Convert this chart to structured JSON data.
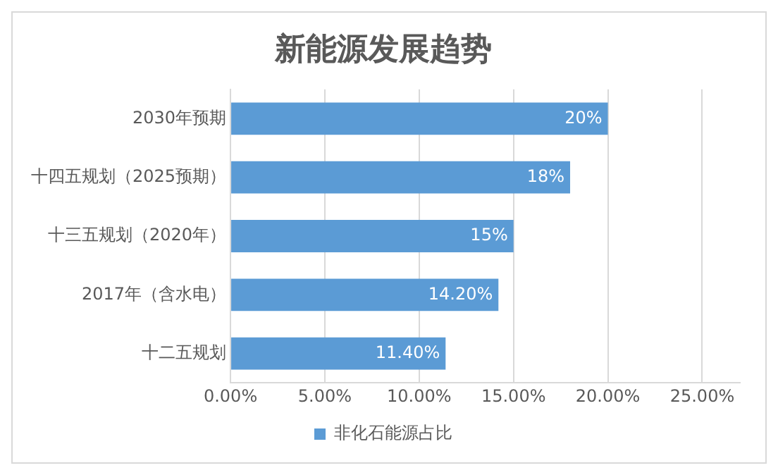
{
  "chart_data": {
    "type": "bar",
    "title": "新能源发展趋势",
    "orientation": "horizontal",
    "categories": [
      "2030年预期",
      "十四五规划（2025预期）",
      "十三五规划（2020年）",
      "2017年（含水电）",
      "十二五规划"
    ],
    "series": [
      {
        "name": "非化石能源占比",
        "color": "#5b9bd5",
        "values": [
          20,
          18,
          15,
          14.2,
          11.4
        ],
        "value_labels": [
          "20%",
          "18%",
          "15%",
          "14.20%",
          "11.40%"
        ]
      }
    ],
    "xlim": [
      0,
      27
    ],
    "xticks": [
      {
        "value": 0,
        "label": "0.00%"
      },
      {
        "value": 5,
        "label": "5.00%"
      },
      {
        "value": 10,
        "label": "10.00%"
      },
      {
        "value": 15,
        "label": "15.00%"
      },
      {
        "value": 20,
        "label": "20.00%"
      },
      {
        "value": 25,
        "label": "25.00%"
      }
    ],
    "grid": "x",
    "legend": "bottom"
  }
}
